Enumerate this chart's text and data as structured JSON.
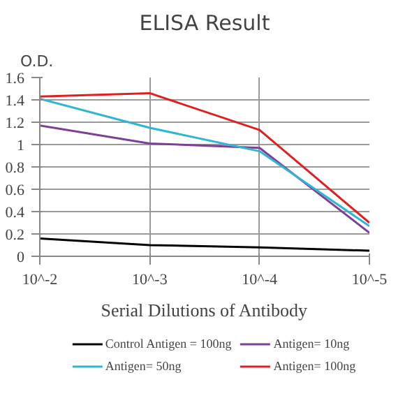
{
  "chart_data": {
    "type": "line",
    "title": "ELISA Result",
    "ylabel": "O.D.",
    "xlabel": "Serial Dilutions of Antibody",
    "categories": [
      "10^-2",
      "10^-3",
      "10^-4",
      "10^-5"
    ],
    "series": [
      {
        "name": "Control Antigen = 100ng",
        "color": "#000000",
        "values": [
          0.16,
          0.1,
          0.08,
          0.05
        ]
      },
      {
        "name": "Antigen= 10ng",
        "color": "#7f3f98",
        "values": [
          1.17,
          1.01,
          0.97,
          0.21
        ]
      },
      {
        "name": "Antigen= 50ng",
        "color": "#2fb5d5",
        "values": [
          1.41,
          1.15,
          0.94,
          0.27
        ]
      },
      {
        "name": "Antigen= 100ng",
        "color": "#e02020",
        "values": [
          1.43,
          1.46,
          1.13,
          0.3
        ]
      }
    ],
    "ylim": [
      0,
      1.6
    ],
    "yticks": [
      0,
      0.2,
      0.4,
      0.6,
      0.8,
      1,
      1.2,
      1.4,
      1.6
    ],
    "grid": true,
    "legend": "bottom",
    "marker": "none",
    "line_style": "solid"
  }
}
